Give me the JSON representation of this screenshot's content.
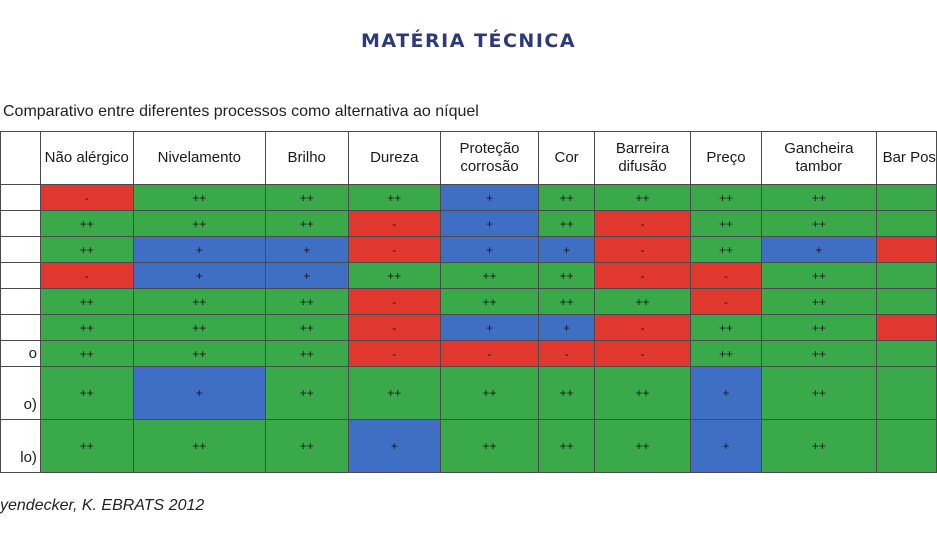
{
  "title": "MATÉRIA TÉCNICA",
  "caption": "Comparativo entre diferentes processos como alternativa ao níquel",
  "source": "yendecker, K. EBRATS 2012",
  "colors": {
    "green": "#3aa94a",
    "red": "#e0372f",
    "blue": "#3e6fc4",
    "title": "#2e3a78"
  },
  "headers": [
    "Não alérgico",
    "Nivelamento",
    "Brilho",
    "Dureza",
    "Proteção corrosão",
    "Cor",
    "Barreira difusão",
    "Preço",
    "Gancheira tambor",
    "Bar Pos"
  ],
  "row_labels": [
    "",
    "",
    "",
    "",
    "",
    "",
    "o",
    "o)",
    "lo)"
  ],
  "rows": [
    [
      [
        "-",
        "r"
      ],
      [
        "++",
        "g"
      ],
      [
        "++",
        "g"
      ],
      [
        "++",
        "g"
      ],
      [
        "+",
        "b"
      ],
      [
        "++",
        "g"
      ],
      [
        "++",
        "g"
      ],
      [
        "++",
        "g"
      ],
      [
        "++",
        "g"
      ],
      [
        "",
        "g"
      ]
    ],
    [
      [
        "++",
        "g"
      ],
      [
        "++",
        "g"
      ],
      [
        "++",
        "g"
      ],
      [
        "-",
        "r"
      ],
      [
        "+",
        "b"
      ],
      [
        "++",
        "g"
      ],
      [
        "-",
        "r"
      ],
      [
        "++",
        "g"
      ],
      [
        "++",
        "g"
      ],
      [
        "",
        "g"
      ]
    ],
    [
      [
        "++",
        "g"
      ],
      [
        "+",
        "b"
      ],
      [
        "+",
        "b"
      ],
      [
        "-",
        "r"
      ],
      [
        "+",
        "b"
      ],
      [
        "+",
        "b"
      ],
      [
        "-",
        "r"
      ],
      [
        "++",
        "g"
      ],
      [
        "+",
        "b"
      ],
      [
        "",
        "r"
      ]
    ],
    [
      [
        "-",
        "r"
      ],
      [
        "+",
        "b"
      ],
      [
        "+",
        "b"
      ],
      [
        "++",
        "g"
      ],
      [
        "++",
        "g"
      ],
      [
        "++",
        "g"
      ],
      [
        "-",
        "r"
      ],
      [
        "-",
        "r"
      ],
      [
        "++",
        "g"
      ],
      [
        "",
        "g"
      ]
    ],
    [
      [
        "++",
        "g"
      ],
      [
        "++",
        "g"
      ],
      [
        "++",
        "g"
      ],
      [
        "-",
        "r"
      ],
      [
        "++",
        "g"
      ],
      [
        "++",
        "g"
      ],
      [
        "++",
        "g"
      ],
      [
        "-",
        "r"
      ],
      [
        "++",
        "g"
      ],
      [
        "",
        "g"
      ]
    ],
    [
      [
        "++",
        "g"
      ],
      [
        "++",
        "g"
      ],
      [
        "++",
        "g"
      ],
      [
        "-",
        "r"
      ],
      [
        "+",
        "b"
      ],
      [
        "+",
        "b"
      ],
      [
        "-",
        "r"
      ],
      [
        "++",
        "g"
      ],
      [
        "++",
        "g"
      ],
      [
        "",
        "r"
      ]
    ],
    [
      [
        "++",
        "g"
      ],
      [
        "++",
        "g"
      ],
      [
        "++",
        "g"
      ],
      [
        "-",
        "r"
      ],
      [
        "-",
        "r"
      ],
      [
        "-",
        "r"
      ],
      [
        "-",
        "r"
      ],
      [
        "++",
        "g"
      ],
      [
        "++",
        "g"
      ],
      [
        "",
        "g"
      ]
    ],
    [
      [
        "++",
        "g"
      ],
      [
        "+",
        "b"
      ],
      [
        "++",
        "g"
      ],
      [
        "++",
        "g"
      ],
      [
        "++",
        "g"
      ],
      [
        "++",
        "g"
      ],
      [
        "++",
        "g"
      ],
      [
        "+",
        "b"
      ],
      [
        "++",
        "g"
      ],
      [
        "",
        "g"
      ]
    ],
    [
      [
        "++",
        "g"
      ],
      [
        "++",
        "g"
      ],
      [
        "++",
        "g"
      ],
      [
        "+",
        "b"
      ],
      [
        "++",
        "g"
      ],
      [
        "++",
        "g"
      ],
      [
        "++",
        "g"
      ],
      [
        "+",
        "b"
      ],
      [
        "++",
        "g"
      ],
      [
        "",
        "g"
      ]
    ]
  ]
}
